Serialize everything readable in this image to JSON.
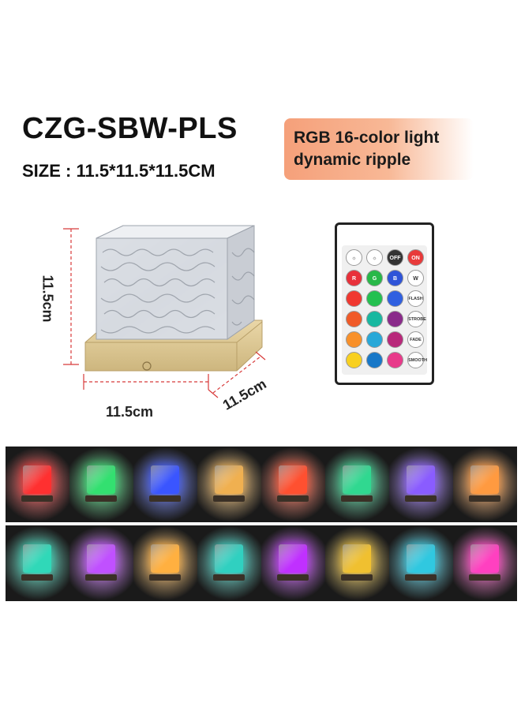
{
  "product": {
    "model": "CZG-SBW-PLS",
    "size": "SIZE : 11.5*11.5*11.5CM"
  },
  "badge": {
    "line1": "RGB 16-color light",
    "line2": "dynamic ripple"
  },
  "dimensions": {
    "height": "11.5cm",
    "width": "11.5cm",
    "depth": "11.5cm"
  },
  "remote": {
    "rows": [
      [
        {
          "color": "#ffffff",
          "label": "☼"
        },
        {
          "color": "#ffffff",
          "label": "☼"
        },
        {
          "color": "#333333",
          "label": "OFF",
          "text": "#ffffff"
        },
        {
          "color": "#e83a3a",
          "label": "ON",
          "text": "#ffffff"
        }
      ],
      [
        {
          "color": "#e8303a",
          "label": "R",
          "text": "#ffffff"
        },
        {
          "color": "#28b848",
          "label": "G",
          "text": "#ffffff"
        },
        {
          "color": "#2f54d8",
          "label": "B",
          "text": "#ffffff"
        },
        {
          "color": "#ffffff",
          "label": "W"
        }
      ],
      [
        {
          "color": "#f03830",
          "label": ""
        },
        {
          "color": "#24c050",
          "label": ""
        },
        {
          "color": "#3060e0",
          "label": ""
        },
        {
          "color": "#ffffff",
          "label": "FLASH",
          "tag": true
        }
      ],
      [
        {
          "color": "#f05a28",
          "label": ""
        },
        {
          "color": "#18b8a0",
          "label": ""
        },
        {
          "color": "#8a2a8a",
          "label": ""
        },
        {
          "color": "#ffffff",
          "label": "STROBE",
          "tag": true
        }
      ],
      [
        {
          "color": "#f8902a",
          "label": ""
        },
        {
          "color": "#28a8d8",
          "label": ""
        },
        {
          "color": "#b8287a",
          "label": ""
        },
        {
          "color": "#ffffff",
          "label": "FADE",
          "tag": true
        }
      ],
      [
        {
          "color": "#f8d020",
          "label": ""
        },
        {
          "color": "#1878c8",
          "label": ""
        },
        {
          "color": "#e83a8a",
          "label": ""
        },
        {
          "color": "#ffffff",
          "label": "SMOOTH",
          "tag": true
        }
      ]
    ]
  },
  "color_samples": [
    "#ff3030",
    "#33e070",
    "#3a55ff",
    "#f0b050",
    "#ff5030",
    "#30d890",
    "#8a5cff",
    "#ff9a40",
    "#30d8b8",
    "#c050ff",
    "#ffb040",
    "#30d0c0",
    "#c030ff",
    "#f0c030",
    "#30c8e0",
    "#ff40c0"
  ]
}
